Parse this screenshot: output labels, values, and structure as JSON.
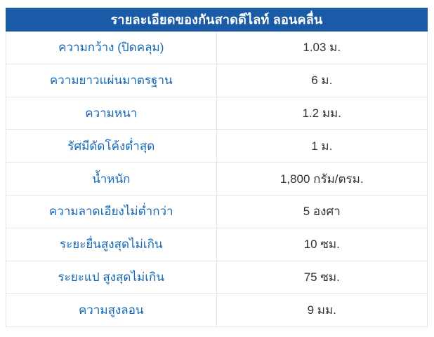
{
  "table": {
    "title": "รายละเอียดของกันสาดดีไลท์ ลอนคลื่น",
    "rows": [
      {
        "label": "ความกว้าง (ปิดคลุม)",
        "value": "1.03 ม."
      },
      {
        "label": "ความยาวแผ่นมาตรฐาน",
        "value": "6 ม."
      },
      {
        "label": "ความหนา",
        "value": "1.2 มม."
      },
      {
        "label": "รัศมีดัดโค้งต่ำสุด",
        "value": "1 ม."
      },
      {
        "label": "น้ำหนัก",
        "value": "1,800 กรัม/ตรม."
      },
      {
        "label": "ความลาดเอียงไม่ต่ำกว่า",
        "value": "5 องศา"
      },
      {
        "label": "ระยะยื่นสูงสุดไม่เกิน",
        "value": "10 ซม."
      },
      {
        "label": "ระยะแป สูงสุดไม่เกิน",
        "value": "75 ซม."
      },
      {
        "label": "ความสูงลอน",
        "value": "9 มม."
      }
    ],
    "colors": {
      "header_bg": "#1A5BA8",
      "header_text": "#FFFFFF",
      "label_text": "#1568B5",
      "value_text": "#333333",
      "border": "#E3E3E3"
    }
  }
}
